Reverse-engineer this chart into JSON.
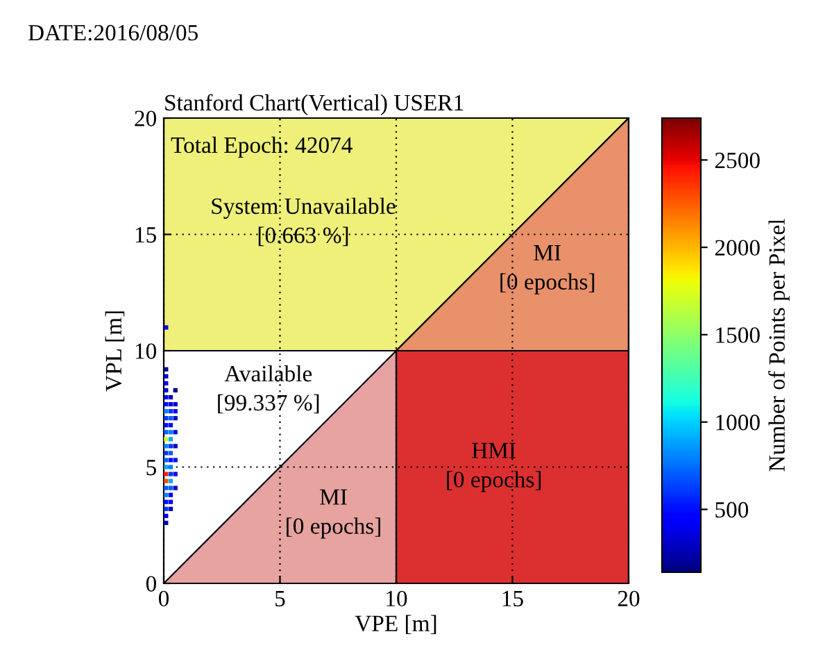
{
  "chart_data": {
    "type": "scatter",
    "title": "Stanford Chart(Vertical) USER1",
    "xlabel": "VPE [m]",
    "ylabel": "VPL [m]",
    "clabel": "Number of Points per Pixel",
    "x": [
      0.1,
      0.1,
      0.1,
      0.1,
      0.1,
      0.1,
      0.1,
      0.1,
      0.1,
      0.1,
      0.1,
      0.1,
      0.1,
      0.1,
      0.1,
      0.1,
      0.1,
      0.1,
      0.1,
      0.1,
      0.1,
      0.1,
      0.1,
      0.3,
      0.3,
      0.3,
      0.3,
      0.3,
      0.3,
      0.3,
      0.3,
      0.3,
      0.3,
      0.3,
      0.3,
      0.3,
      0.3,
      0.3,
      0.3,
      0.3,
      0.5,
      0.5,
      0.5,
      0.5,
      0.5,
      0.5,
      0.5,
      0.5,
      0.5,
      0.1
    ],
    "values": [
      2.6,
      2.9,
      3.2,
      3.5,
      3.8,
      4.1,
      4.4,
      4.7,
      5.0,
      5.3,
      5.6,
      5.9,
      6.2,
      6.5,
      6.8,
      7.1,
      7.4,
      7.7,
      8.0,
      8.3,
      8.6,
      8.9,
      9.2,
      3.2,
      3.5,
      3.8,
      4.1,
      4.4,
      4.7,
      5.0,
      5.3,
      5.6,
      5.9,
      6.2,
      6.5,
      6.8,
      7.1,
      7.4,
      7.7,
      8.0,
      4.1,
      4.7,
      5.3,
      5.9,
      6.5,
      7.1,
      7.4,
      7.7,
      8.3,
      11.0
    ],
    "cvalues": [
      300,
      400,
      600,
      500,
      800,
      700,
      2300,
      2400,
      900,
      700,
      600,
      800,
      1700,
      700,
      500,
      600,
      800,
      500,
      400,
      300,
      400,
      300,
      200,
      300,
      500,
      400,
      700,
      900,
      600,
      800,
      500,
      700,
      600,
      900,
      800,
      500,
      700,
      600,
      400,
      300,
      300,
      400,
      500,
      300,
      400,
      300,
      400,
      300,
      200,
      400
    ],
    "xlim": [
      0,
      20
    ],
    "ylim": [
      0,
      20
    ],
    "xticks": [
      0,
      5,
      10,
      15,
      20
    ],
    "yticks": [
      0,
      5,
      10,
      15,
      20
    ],
    "clim": [
      140,
      2740
    ],
    "cticks": [
      500,
      1000,
      1500,
      2000,
      2500
    ],
    "grid": true,
    "marker": "square",
    "annotations": [
      "DATE:2016/08/05",
      "Total Epoch: 42074",
      "System Unavailable\n[0.663 %]",
      "MI\n[0 epochs]",
      "Available\n[99.337 %]",
      "MI\n[0 epochs]",
      "HMI\n[0 epochs]"
    ]
  }
}
